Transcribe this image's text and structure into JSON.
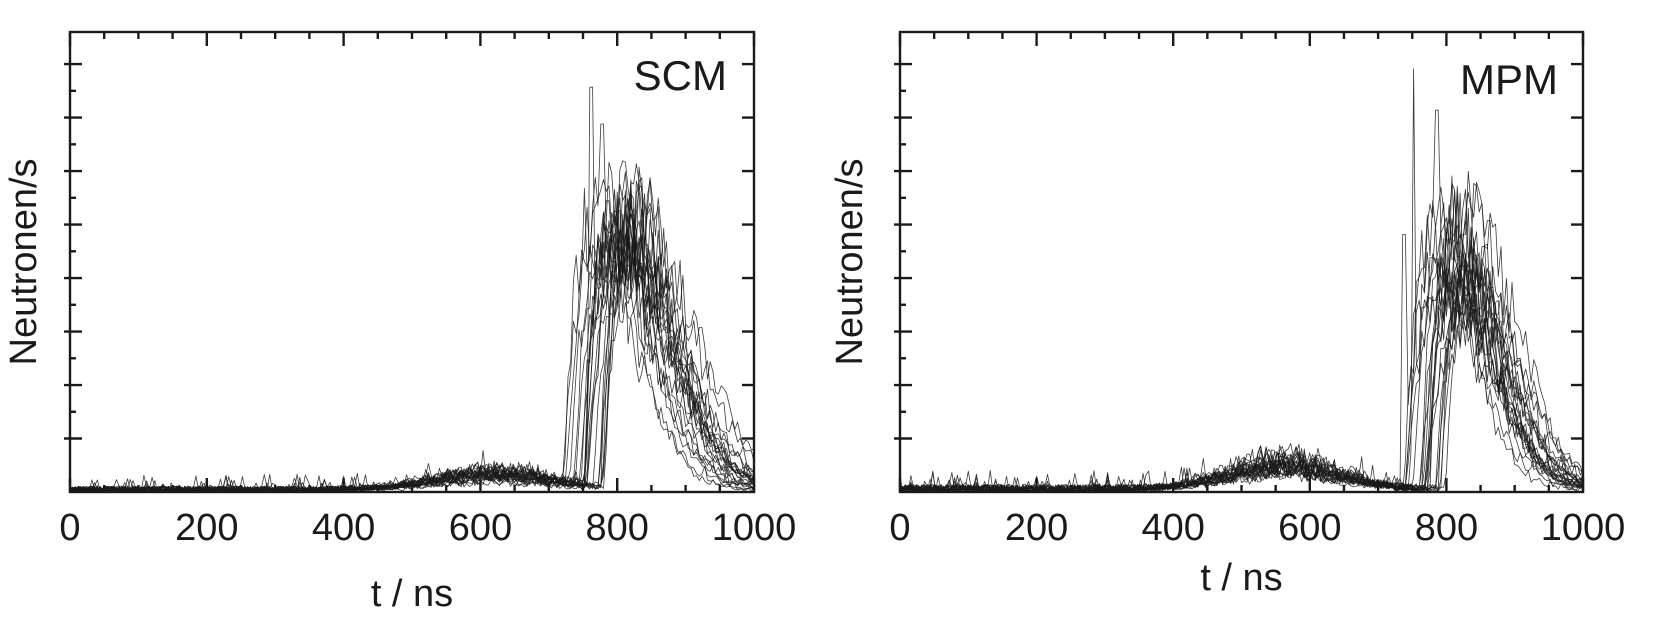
{
  "chart_data": [
    {
      "type": "line",
      "panel_label": "SCM",
      "xlabel": "t / ns",
      "ylabel": "Neutronen/s",
      "xlim": [
        0,
        1000
      ],
      "ylim": [
        0,
        1
      ],
      "x_ticks": [
        0,
        200,
        400,
        600,
        800,
        1000
      ],
      "x_tick_labels": [
        "0",
        "200",
        "400",
        "600",
        "800",
        "1000"
      ],
      "y_tick_labels": [],
      "y_tick_count": 8,
      "grid": false,
      "series_count": 24,
      "x_sample_step": 4,
      "noise_level": 0.02,
      "background": {
        "center": 620,
        "width": 120,
        "height": 0.03
      },
      "onset_range": [
        720,
        785
      ],
      "peak_range": [
        0.53,
        0.73
      ],
      "decay_range": [
        65,
        95
      ],
      "spike_peaks": [
        {
          "x": 762,
          "y": 0.88
        },
        {
          "x": 777,
          "y": 0.8
        },
        {
          "x": 752,
          "y": 0.66
        }
      ],
      "line_color": "#1a1a1a"
    },
    {
      "type": "line",
      "panel_label": "MPM",
      "xlabel": "t / ns",
      "ylabel": "Neutronen/s",
      "xlim": [
        0,
        1000
      ],
      "ylim": [
        0,
        1
      ],
      "x_ticks": [
        0,
        200,
        400,
        600,
        800,
        1000
      ],
      "x_tick_labels": [
        "0",
        "200",
        "400",
        "600",
        "800",
        "1000"
      ],
      "y_tick_labels": [],
      "y_tick_count": 8,
      "grid": false,
      "series_count": 24,
      "x_sample_step": 4,
      "noise_level": 0.025,
      "background": {
        "center": 560,
        "width": 110,
        "height": 0.05
      },
      "onset_range": [
        730,
        800
      ],
      "peak_range": [
        0.45,
        0.68
      ],
      "decay_range": [
        60,
        85
      ],
      "spike_peaks": [
        {
          "x": 752,
          "y": 0.92
        },
        {
          "x": 785,
          "y": 0.83
        },
        {
          "x": 737,
          "y": 0.56
        }
      ],
      "line_color": "#1a1a1a"
    }
  ]
}
